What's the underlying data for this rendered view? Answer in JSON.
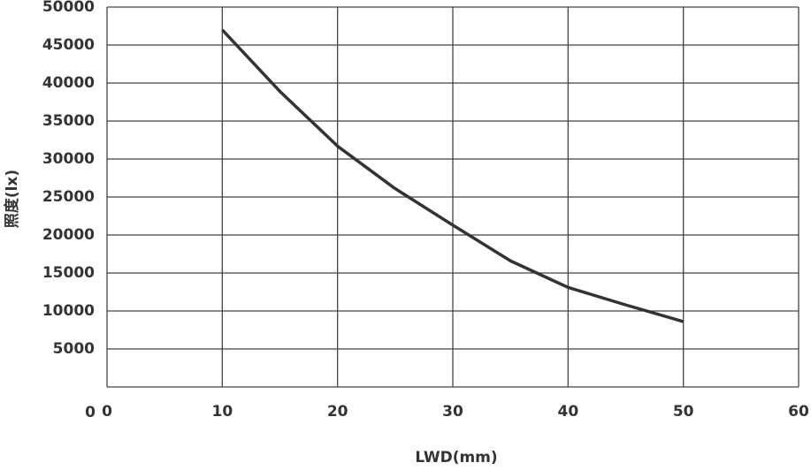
{
  "chart_data": {
    "type": "line",
    "x_label": "LWD(mm)",
    "y_label": "照度(lx)",
    "series": [
      {
        "name": "illuminance",
        "color": "#333333",
        "x": [
          10,
          15,
          20,
          25,
          30,
          35,
          40,
          45,
          50
        ],
        "values": [
          47000,
          38900,
          31700,
          26100,
          21300,
          16600,
          13100,
          10800,
          8600
        ]
      }
    ],
    "xlim": [
      0,
      60
    ],
    "xticks": [
      0,
      10,
      20,
      30,
      40,
      50,
      60
    ],
    "ylim": [
      0,
      50000
    ],
    "yticks": [
      0,
      5000,
      10000,
      15000,
      20000,
      25000,
      30000,
      35000,
      40000,
      45000,
      50000
    ],
    "grid": true
  }
}
